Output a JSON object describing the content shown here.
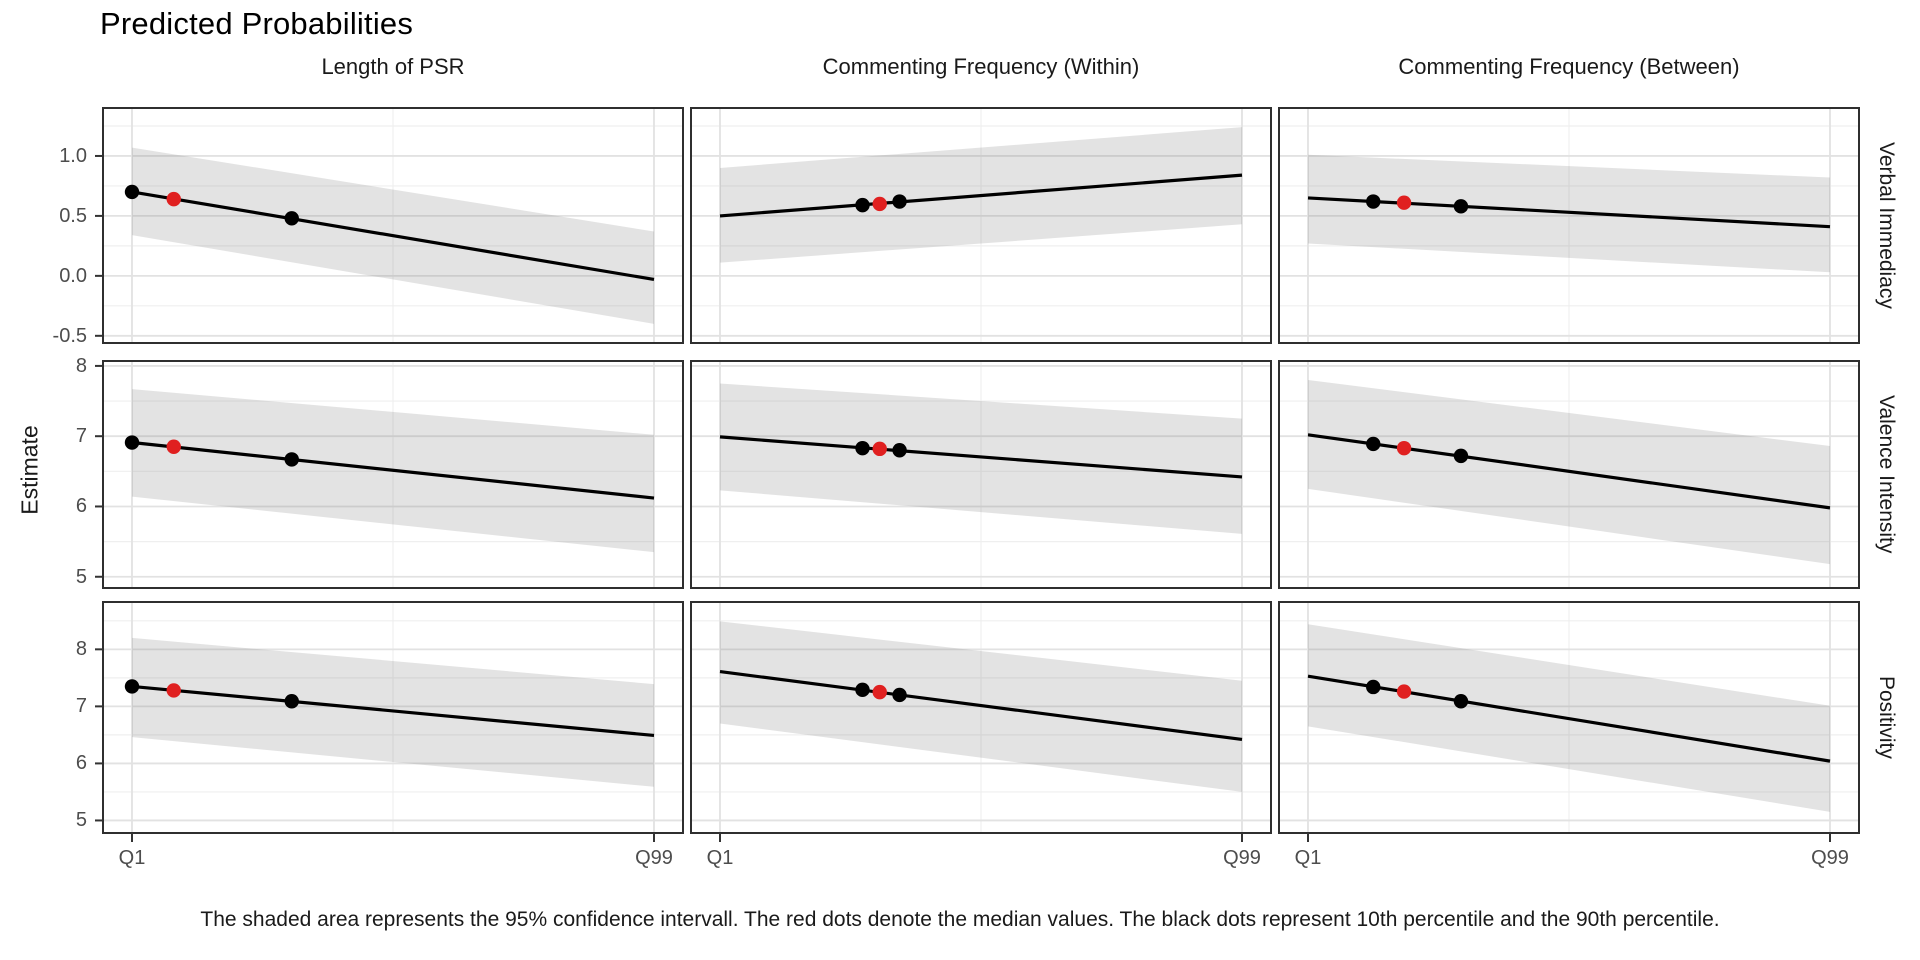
{
  "title": "Predicted Probabilities",
  "caption": "The shaded area represents the 95% confidence intervall. The red dots denote the median values. The black dots represent 10th percentile and the 90th percentile.",
  "axes": {
    "y_title": "Estimate",
    "x_tick_labels": [
      "Q1",
      "Q99"
    ]
  },
  "colors": {
    "line": "#000000",
    "point_black": "#000000",
    "point_median_red": "#E02020",
    "ribbon_fill": "rgba(127,127,127,0.22)",
    "grid_major": "#E2E2E2",
    "grid_minor": "#EFEFEF",
    "panel_border": "#2F2F2F",
    "tick_mark": "#333333",
    "tick_text": "#4D4D4D",
    "text": "#1A1A1A"
  },
  "chart_data": {
    "type": "line",
    "layout": "facet_grid 3x3, shared x axis Q1..Q99, free y per row, ribbons = 95% CI, grid on, strips on right",
    "x_range_labels": [
      "Q1",
      "Q99"
    ],
    "x_gridlines_fraction": {
      "major": [
        0.05,
        0.95
      ],
      "minor": [
        0.5
      ]
    },
    "columns": [
      "Length of PSR",
      "Commenting Frequency (Within)",
      "Commenting Frequency (Between)"
    ],
    "rows": [
      {
        "label": "Verbal Immediacy",
        "ylim": [
          -0.56,
          1.4
        ],
        "yticks": [
          1.0,
          0.5,
          0.0,
          -0.5
        ],
        "ytick_labels": [
          "1.0",
          "0.5",
          "0.0",
          "-0.5"
        ],
        "yminor": [
          1.25,
          0.75,
          0.25,
          -0.25
        ]
      },
      {
        "label": "Valence Intensity",
        "ylim": [
          4.84,
          8.07
        ],
        "yticks": [
          8,
          7,
          6,
          5
        ],
        "ytick_labels": [
          "8",
          "7",
          "6",
          "5"
        ],
        "yminor": [
          7.5,
          6.5,
          5.5
        ]
      },
      {
        "label": "Positivity",
        "ylim": [
          4.78,
          8.83
        ],
        "yticks": [
          8,
          7,
          6,
          5
        ],
        "ytick_labels": [
          "8",
          "7",
          "6",
          "5"
        ],
        "yminor": [
          8.5,
          7.5,
          6.5,
          5.5
        ]
      }
    ],
    "panels": [
      {
        "row_label": "Verbal Immediacy",
        "col_label": "Length of PSR",
        "line": {
          "x": [
            0,
            1
          ],
          "y": [
            0.7,
            -0.03
          ]
        },
        "ribbon": {
          "upper": [
            1.07,
            0.37
          ],
          "lower": [
            0.34,
            -0.4
          ]
        },
        "points": [
          {
            "stat": "p10",
            "color": "black",
            "x": 0.0,
            "y": 0.7
          },
          {
            "stat": "median",
            "color": "red",
            "x": 0.08,
            "y": 0.64
          },
          {
            "stat": "p90",
            "color": "black",
            "x": 0.306,
            "y": 0.48
          }
        ]
      },
      {
        "row_label": "Verbal Immediacy",
        "col_label": "Commenting Frequency (Within)",
        "line": {
          "x": [
            0,
            1
          ],
          "y": [
            0.5,
            0.84
          ]
        },
        "ribbon": {
          "upper": [
            0.9,
            1.24
          ],
          "lower": [
            0.11,
            0.43
          ]
        },
        "points": [
          {
            "stat": "p10",
            "color": "black",
            "x": 0.273,
            "y": 0.59
          },
          {
            "stat": "median",
            "color": "red",
            "x": 0.306,
            "y": 0.6
          },
          {
            "stat": "p90",
            "color": "black",
            "x": 0.344,
            "y": 0.62
          }
        ]
      },
      {
        "row_label": "Verbal Immediacy",
        "col_label": "Commenting Frequency (Between)",
        "line": {
          "x": [
            0,
            1
          ],
          "y": [
            0.65,
            0.41
          ]
        },
        "ribbon": {
          "upper": [
            1.01,
            0.82
          ],
          "lower": [
            0.27,
            0.03
          ]
        },
        "points": [
          {
            "stat": "p10",
            "color": "black",
            "x": 0.125,
            "y": 0.62
          },
          {
            "stat": "median",
            "color": "red",
            "x": 0.184,
            "y": 0.61
          },
          {
            "stat": "p90",
            "color": "black",
            "x": 0.293,
            "y": 0.58
          }
        ]
      },
      {
        "row_label": "Valence Intensity",
        "col_label": "Length of PSR",
        "line": {
          "x": [
            0,
            1
          ],
          "y": [
            6.91,
            6.12
          ]
        },
        "ribbon": {
          "upper": [
            7.67,
            7.02
          ],
          "lower": [
            6.14,
            5.35
          ]
        },
        "points": [
          {
            "stat": "p10",
            "color": "black",
            "x": 0.0,
            "y": 6.91
          },
          {
            "stat": "median",
            "color": "red",
            "x": 0.08,
            "y": 6.85
          },
          {
            "stat": "p90",
            "color": "black",
            "x": 0.306,
            "y": 6.67
          }
        ]
      },
      {
        "row_label": "Valence Intensity",
        "col_label": "Commenting Frequency (Within)",
        "line": {
          "x": [
            0,
            1
          ],
          "y": [
            6.99,
            6.42
          ]
        },
        "ribbon": {
          "upper": [
            7.75,
            7.25
          ],
          "lower": [
            6.23,
            5.61
          ]
        },
        "points": [
          {
            "stat": "p10",
            "color": "black",
            "x": 0.273,
            "y": 6.83
          },
          {
            "stat": "median",
            "color": "red",
            "x": 0.306,
            "y": 6.82
          },
          {
            "stat": "p90",
            "color": "black",
            "x": 0.344,
            "y": 6.8
          }
        ]
      },
      {
        "row_label": "Valence Intensity",
        "col_label": "Commenting Frequency (Between)",
        "line": {
          "x": [
            0,
            1
          ],
          "y": [
            7.02,
            5.98
          ]
        },
        "ribbon": {
          "upper": [
            7.8,
            6.86
          ],
          "lower": [
            6.25,
            5.18
          ]
        },
        "points": [
          {
            "stat": "p10",
            "color": "black",
            "x": 0.125,
            "y": 6.89
          },
          {
            "stat": "median",
            "color": "red",
            "x": 0.184,
            "y": 6.83
          },
          {
            "stat": "p90",
            "color": "black",
            "x": 0.293,
            "y": 6.72
          }
        ]
      },
      {
        "row_label": "Positivity",
        "col_label": "Length of PSR",
        "line": {
          "x": [
            0,
            1
          ],
          "y": [
            7.35,
            6.49
          ]
        },
        "ribbon": {
          "upper": [
            8.2,
            7.39
          ],
          "lower": [
            6.46,
            5.59
          ]
        },
        "points": [
          {
            "stat": "p10",
            "color": "black",
            "x": 0.0,
            "y": 7.35
          },
          {
            "stat": "median",
            "color": "red",
            "x": 0.08,
            "y": 7.28
          },
          {
            "stat": "p90",
            "color": "black",
            "x": 0.306,
            "y": 7.09
          }
        ]
      },
      {
        "row_label": "Positivity",
        "col_label": "Commenting Frequency (Within)",
        "line": {
          "x": [
            0,
            1
          ],
          "y": [
            7.61,
            6.42
          ]
        },
        "ribbon": {
          "upper": [
            8.49,
            7.45
          ],
          "lower": [
            6.7,
            5.5
          ]
        },
        "points": [
          {
            "stat": "p10",
            "color": "black",
            "x": 0.273,
            "y": 7.29
          },
          {
            "stat": "median",
            "color": "red",
            "x": 0.306,
            "y": 7.25
          },
          {
            "stat": "p90",
            "color": "black",
            "x": 0.344,
            "y": 7.2
          }
        ]
      },
      {
        "row_label": "Positivity",
        "col_label": "Commenting Frequency (Between)",
        "line": {
          "x": [
            0,
            1
          ],
          "y": [
            7.53,
            6.04
          ]
        },
        "ribbon": {
          "upper": [
            8.44,
            7.01
          ],
          "lower": [
            6.65,
            5.15
          ]
        },
        "points": [
          {
            "stat": "p10",
            "color": "black",
            "x": 0.125,
            "y": 7.34
          },
          {
            "stat": "median",
            "color": "red",
            "x": 0.184,
            "y": 7.26
          },
          {
            "stat": "p90",
            "color": "black",
            "x": 0.293,
            "y": 7.09
          }
        ]
      }
    ]
  }
}
